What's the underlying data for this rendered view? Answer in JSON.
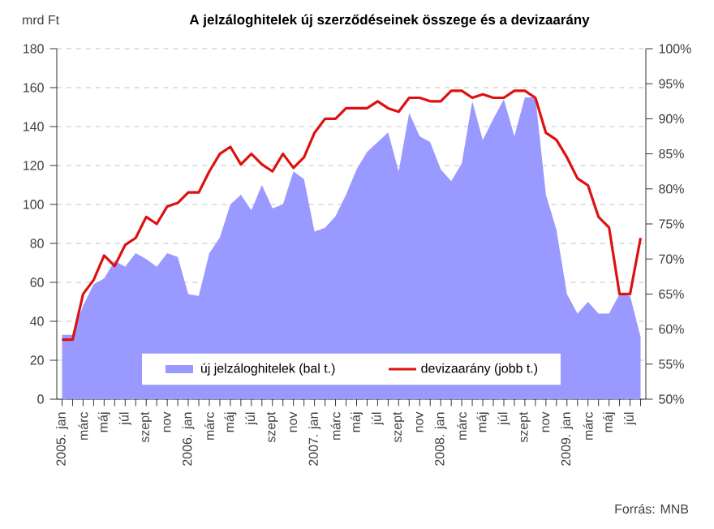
{
  "chart_data": {
    "type": "area",
    "title": "A jelzáloghitelek új szerződéseinek összege és a devizaarány",
    "ylabel": "mrd Ft",
    "categories": [
      "2005. jan",
      null,
      "márc",
      null,
      "máj",
      null,
      "júl",
      null,
      "szept",
      null,
      "nov",
      null,
      "2006. jan",
      null,
      "márc",
      null,
      "máj",
      null,
      "júl",
      null,
      "szept",
      null,
      "nov",
      null,
      "2007. jan",
      null,
      "márc",
      null,
      "máj",
      null,
      "júl",
      null,
      "szept",
      null,
      "nov",
      null,
      "2008. jan",
      null,
      "márc",
      null,
      "máj",
      null,
      "júl",
      null,
      "szept",
      null,
      "nov",
      null,
      "2009. jan",
      null,
      "márc",
      null,
      "máj",
      null,
      "júl",
      null
    ],
    "series": [
      {
        "name": "új jelzáloghitelek (bal t.)",
        "color": "#9999ff",
        "values": [
          33,
          33,
          48,
          59,
          62,
          71,
          68,
          75,
          72,
          68,
          75,
          73,
          54,
          53,
          75,
          83,
          100,
          105,
          97,
          110,
          98,
          100,
          117,
          113,
          86,
          88,
          94,
          105,
          118,
          127,
          132,
          137,
          117,
          147,
          135,
          132,
          118,
          112,
          121,
          153,
          133,
          144,
          154,
          135,
          155,
          155,
          105,
          87,
          54,
          44,
          50,
          44,
          44,
          54,
          53,
          32
        ]
      },
      {
        "name": "devizaarány (jobb t.)",
        "type": "line",
        "axis": "y2",
        "color": "#dd1111",
        "values": [
          58.5,
          58.5,
          65,
          67,
          70.5,
          69,
          72,
          73,
          76,
          75,
          77.5,
          78,
          79.5,
          79.5,
          82.5,
          85,
          86,
          83.5,
          85,
          83.5,
          82.5,
          85,
          83,
          84.5,
          88,
          90,
          90,
          91.5,
          91.5,
          91.5,
          92.5,
          91.5,
          91,
          93,
          93,
          92.5,
          92.5,
          94,
          94,
          93,
          93.5,
          93,
          93,
          94,
          94,
          93,
          88,
          87,
          84.5,
          81.5,
          80.5,
          76,
          74.5,
          65,
          65,
          73
        ]
      }
    ],
    "ylim": [
      0,
      180
    ],
    "yticks": [
      0,
      20,
      40,
      60,
      80,
      100,
      120,
      140,
      160,
      180
    ],
    "y2lim": [
      50,
      100
    ],
    "y2ticks": [
      {
        "value": 50,
        "label": "50%"
      },
      {
        "value": 55,
        "label": "55%"
      },
      {
        "value": 60,
        "label": "60%"
      },
      {
        "value": 65,
        "label": "65%"
      },
      {
        "value": 70,
        "label": "70%"
      },
      {
        "value": 75,
        "label": "75%"
      },
      {
        "value": 80,
        "label": "80%"
      },
      {
        "value": 85,
        "label": "85%"
      },
      {
        "value": 90,
        "label": "90%"
      },
      {
        "value": 95,
        "label": "95%"
      },
      {
        "value": 100,
        "label": "100%"
      }
    ],
    "grid": "y",
    "legend": "bottom",
    "annotations": [
      "Forrás: MNB"
    ]
  }
}
